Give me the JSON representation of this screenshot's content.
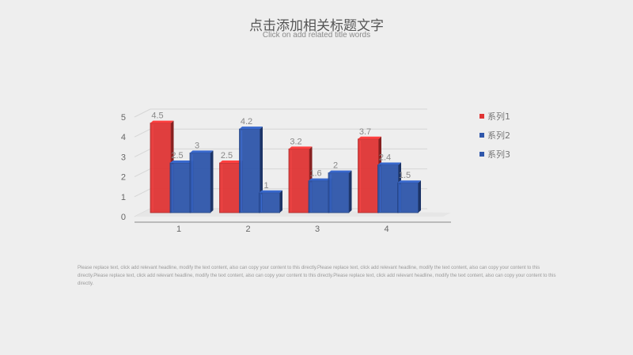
{
  "slide": {
    "title": "点击添加相关标题文字",
    "subtitle": "Click on add related title words",
    "body": "Please replace text, click add relevant headline, modify the text content, also can copy your content to this directly.Please replace text, click add relevant headline, modify the text content, also can copy your content to this directly.Please replace text, click add relevant headline, modify the text content, also can copy your content to this directly.Please replace text, click add relevant headline, modify the text content, also can copy your content to this directly."
  },
  "chart_data": {
    "type": "bar",
    "categories": [
      "1",
      "2",
      "3",
      "4"
    ],
    "series": [
      {
        "name": "系列1",
        "values": [
          4.5,
          2.5,
          3.2,
          3.7
        ],
        "color": "#e03535"
      },
      {
        "name": "系列2",
        "values": [
          2.5,
          4.2,
          1.6,
          2.4
        ],
        "color": "#2f57ab"
      },
      {
        "name": "系列3",
        "values": [
          3,
          1,
          2,
          1.5
        ],
        "color": "#2f57ab"
      }
    ],
    "ylim": [
      0,
      5
    ],
    "yticks": [
      0,
      1,
      2,
      3,
      4,
      5
    ],
    "grid": true,
    "legend": "right",
    "style": "3d-clustered"
  }
}
